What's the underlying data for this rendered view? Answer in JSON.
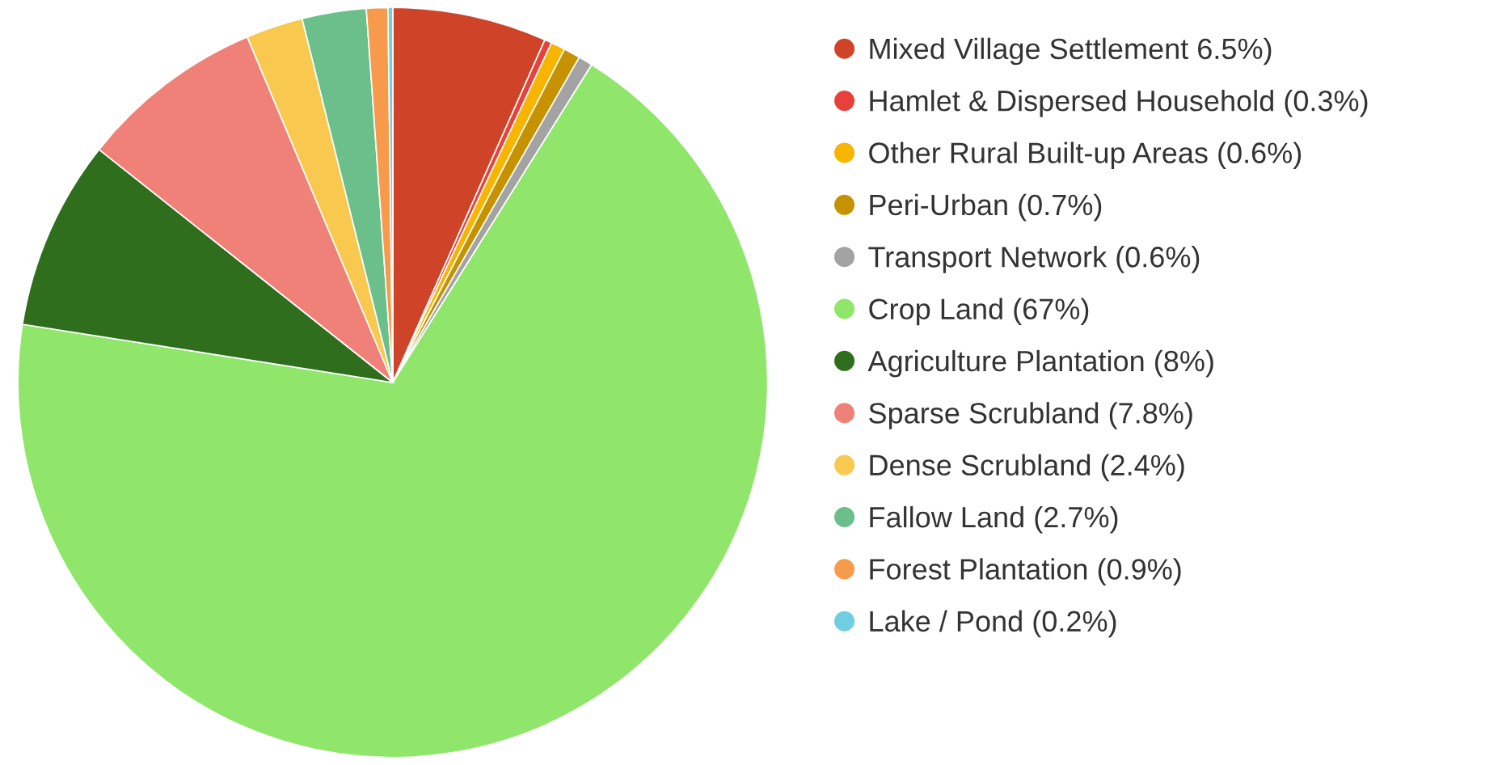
{
  "chart_data": {
    "type": "pie",
    "categories": [
      "Mixed Village Settlement 6.5%)",
      "Hamlet & Dispersed Household (0.3%)",
      "Other Rural Built-up Areas (0.6%)",
      "Peri-Urban (0.7%)",
      "Transport Network (0.6%)",
      "Crop Land (67%)",
      "Agriculture Plantation (8%)",
      "Sparse Scrubland (7.8%)",
      "Dense Scrubland (2.4%)",
      "Fallow Land (2.7%)",
      "Forest Plantation (0.9%)",
      "Lake / Pond (0.2%)"
    ],
    "values": [
      6.5,
      0.3,
      0.6,
      0.7,
      0.6,
      67,
      8,
      7.8,
      2.4,
      2.7,
      0.9,
      0.2
    ],
    "colors": [
      "#cf4429",
      "#e8403a",
      "#f7b500",
      "#c69200",
      "#a3a3a3",
      "#8fe66b",
      "#2e6e1d",
      "#ef8178",
      "#f9c94f",
      "#6bbf8a",
      "#f79a4c",
      "#6fcfe0"
    ],
    "legend": "right"
  }
}
